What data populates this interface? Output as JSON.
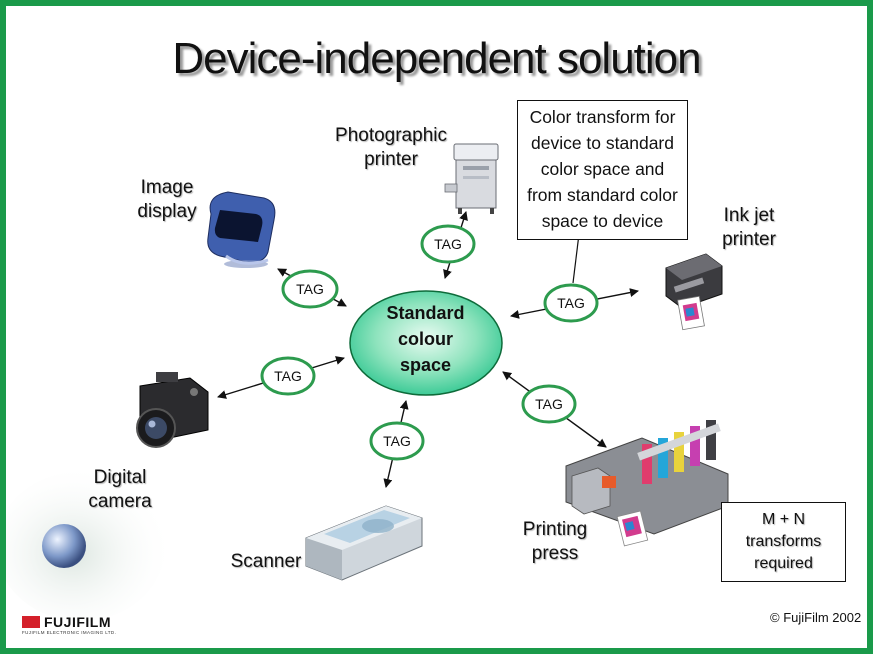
{
  "title": "Device-independent solution",
  "center": {
    "line1": "Standard",
    "line2": "colour",
    "line3": "space"
  },
  "tag_label": "TAG",
  "devices": {
    "photographic_printer": {
      "line1": "Photographic",
      "line2": "printer"
    },
    "image_display": {
      "line1": "Image",
      "line2": "display"
    },
    "inkjet_printer": {
      "line1": "Ink jet",
      "line2": "printer"
    },
    "digital_camera": {
      "line1": "Digital",
      "line2": "camera"
    },
    "scanner": {
      "line1": "Scanner"
    },
    "printing_press": {
      "line1": "Printing",
      "line2": "press"
    }
  },
  "note": {
    "line1": "Color transform for",
    "line2": "device to standard",
    "line3": "color space and",
    "line4": "from standard color",
    "line5": "space to device"
  },
  "mn_box": {
    "line1": "M + N",
    "line2": "transforms",
    "line3": "required"
  },
  "copyright": "© FujiFilm 2002",
  "logo": {
    "name": "FUJIFILM",
    "subtitle": "FUJIFILM ELECTRONIC IMAGING LTD."
  },
  "colors": {
    "border": "#1a9a4a",
    "ellipse_fill": "#2bc58e",
    "tag_ring": "#2d9b4e"
  }
}
